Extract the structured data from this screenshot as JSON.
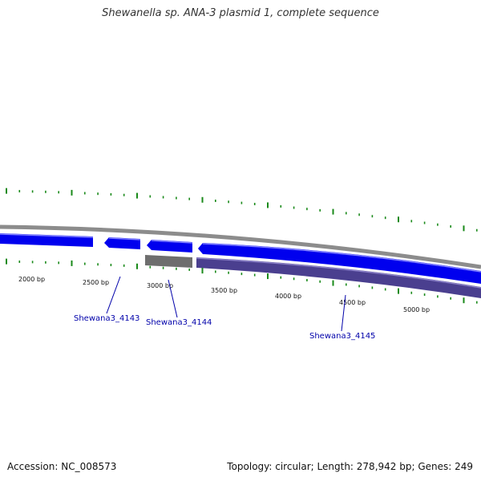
{
  "title": "Shewanella sp. ANA-3 plasmid 1, complete sequence",
  "footer": {
    "accession": "Accession: NC_008573",
    "summary": "Topology: circular; Length: 278,942 bp; Genes: 249"
  },
  "colors": {
    "forward_gene": "#0000ee",
    "reverse_gene": "#4a3f8f",
    "other_feature": "#6e6e6e",
    "backbone": "#8c8c8c",
    "tick": "#1a8a1a",
    "label": "#0000aa"
  },
  "scale": {
    "ticks": [
      {
        "label": "2000 bp"
      },
      {
        "label": "2500 bp"
      },
      {
        "label": "3000 bp"
      },
      {
        "label": "3500 bp"
      },
      {
        "label": "4000 bp"
      },
      {
        "label": "4500 bp"
      },
      {
        "label": "5000 bp"
      }
    ]
  },
  "genes": [
    {
      "label": "Shewana3_4143"
    },
    {
      "label": "Shewana3_4144"
    },
    {
      "label": "Shewana3_4145"
    }
  ]
}
